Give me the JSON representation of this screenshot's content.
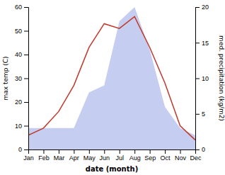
{
  "chart_data": {
    "type": "line",
    "categories": [
      "Jan",
      "Feb",
      "Mar",
      "Apr",
      "May",
      "Jun",
      "Jul",
      "Aug",
      "Sep",
      "Oct",
      "Nov",
      "Dec"
    ],
    "xlabel": "date (month)",
    "ylabel": "max temp (C)",
    "y2label": "med. precipitation (kg/m2)",
    "series": [
      {
        "type": "area",
        "axis": "y2",
        "color": "#c5cdf0",
        "values": [
          3,
          3,
          3,
          3,
          8,
          9,
          18,
          20,
          14,
          6,
          3,
          2
        ]
      },
      {
        "type": "line",
        "color": "#c0392b",
        "values": [
          6,
          9,
          16,
          27,
          43,
          53,
          51,
          56,
          43,
          28,
          10,
          4
        ]
      }
    ],
    "ylim": [
      0,
      60
    ],
    "yticks": [
      0,
      10,
      20,
      30,
      40,
      50,
      60
    ],
    "y2lim": [
      0,
      20
    ],
    "y2ticks": [
      0,
      5,
      10,
      15,
      20
    ],
    "grid": false
  }
}
